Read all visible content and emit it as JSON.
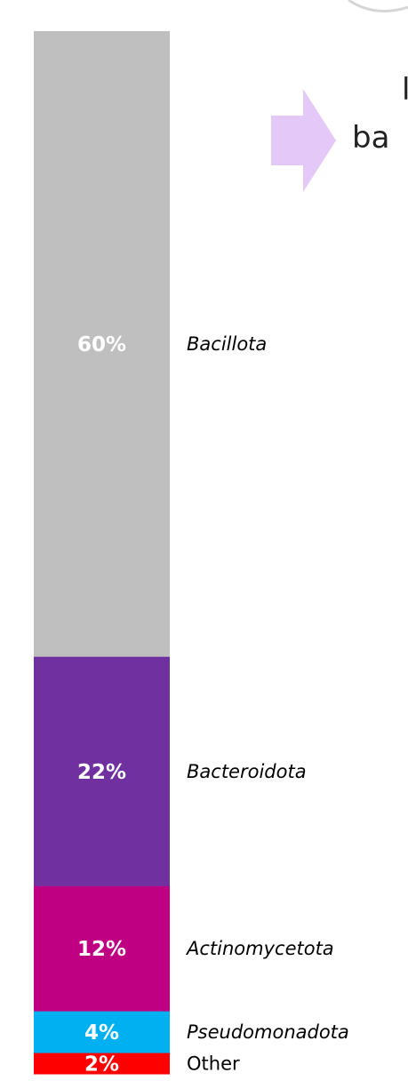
{
  "chart_data": {
    "type": "bar",
    "stacked": true,
    "orientation": "vertical",
    "categories": [
      "Bacillota",
      "Bacteroidota",
      "Actinomycetota",
      "Pseudomonadota",
      "Other"
    ],
    "values": [
      60,
      22,
      12,
      4,
      2
    ],
    "data_labels": [
      "60%",
      "22%",
      "12%",
      "4%",
      "2%"
    ],
    "italic": [
      true,
      true,
      true,
      true,
      false
    ],
    "colors": [
      "#bfbfbf",
      "#7030a0",
      "#c00082",
      "#00b0f0",
      "#ff0000"
    ],
    "total": 100
  },
  "partial_text": {
    "line1": "l",
    "line2": "ba"
  },
  "colors": {
    "arrow": "#e3c8f8",
    "corner_curve": "#d6d6d6"
  },
  "icons": {
    "arrow": "right-arrow-icon"
  }
}
